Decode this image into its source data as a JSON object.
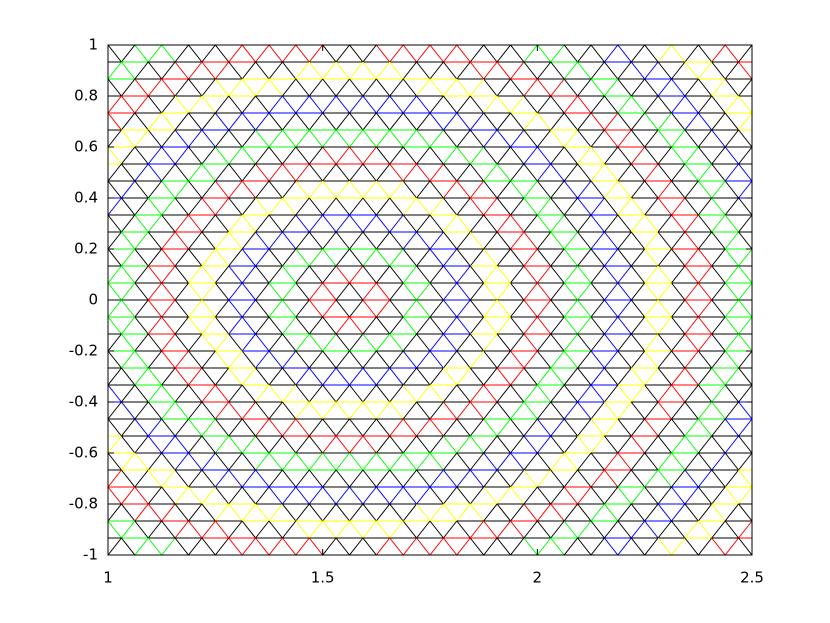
{
  "chart_data": {
    "type": "mesh",
    "xlim": [
      1,
      2.5
    ],
    "xticks": [
      1,
      1.5,
      2,
      2.5
    ],
    "ylim": [
      -1,
      1
    ],
    "yticks": [
      -1,
      -0.8,
      -0.6,
      -0.4,
      -0.2,
      0,
      0.2,
      0.4,
      0.6,
      0.8,
      1
    ],
    "colors": [
      "#000000",
      "#ff0000",
      "#000000",
      "#00ff00",
      "#000000",
      "#0000ff",
      "#000000",
      "#ffff00"
    ]
  }
}
